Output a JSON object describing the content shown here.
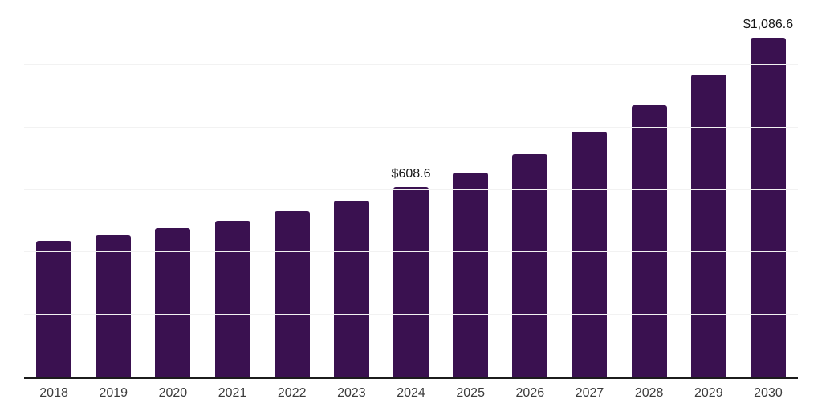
{
  "chart_data": {
    "type": "bar",
    "title": "",
    "xlabel": "",
    "ylabel": "",
    "categories": [
      "2018",
      "2019",
      "2020",
      "2021",
      "2022",
      "2023",
      "2024",
      "2025",
      "2026",
      "2027",
      "2028",
      "2029",
      "2030"
    ],
    "values": [
      437,
      456,
      479,
      501,
      532,
      565,
      608.6,
      656,
      715,
      786,
      870,
      969,
      1086.6
    ],
    "data_labels": [
      "",
      "",
      "",
      "",
      "",
      "",
      "$608.6",
      "",
      "",
      "",
      "",
      "",
      "$1,086.6"
    ],
    "ylim": [
      0,
      1200
    ],
    "grid_step": 200,
    "grid": "horizontal",
    "legend": "none",
    "colors": {
      "bar": "#3A1150",
      "gridline": "#F2F2F2",
      "axis_line": "#1C1C1C",
      "tick_label": "#3C3C3C",
      "data_label": "#141414",
      "background": "#FFFFFF"
    }
  }
}
